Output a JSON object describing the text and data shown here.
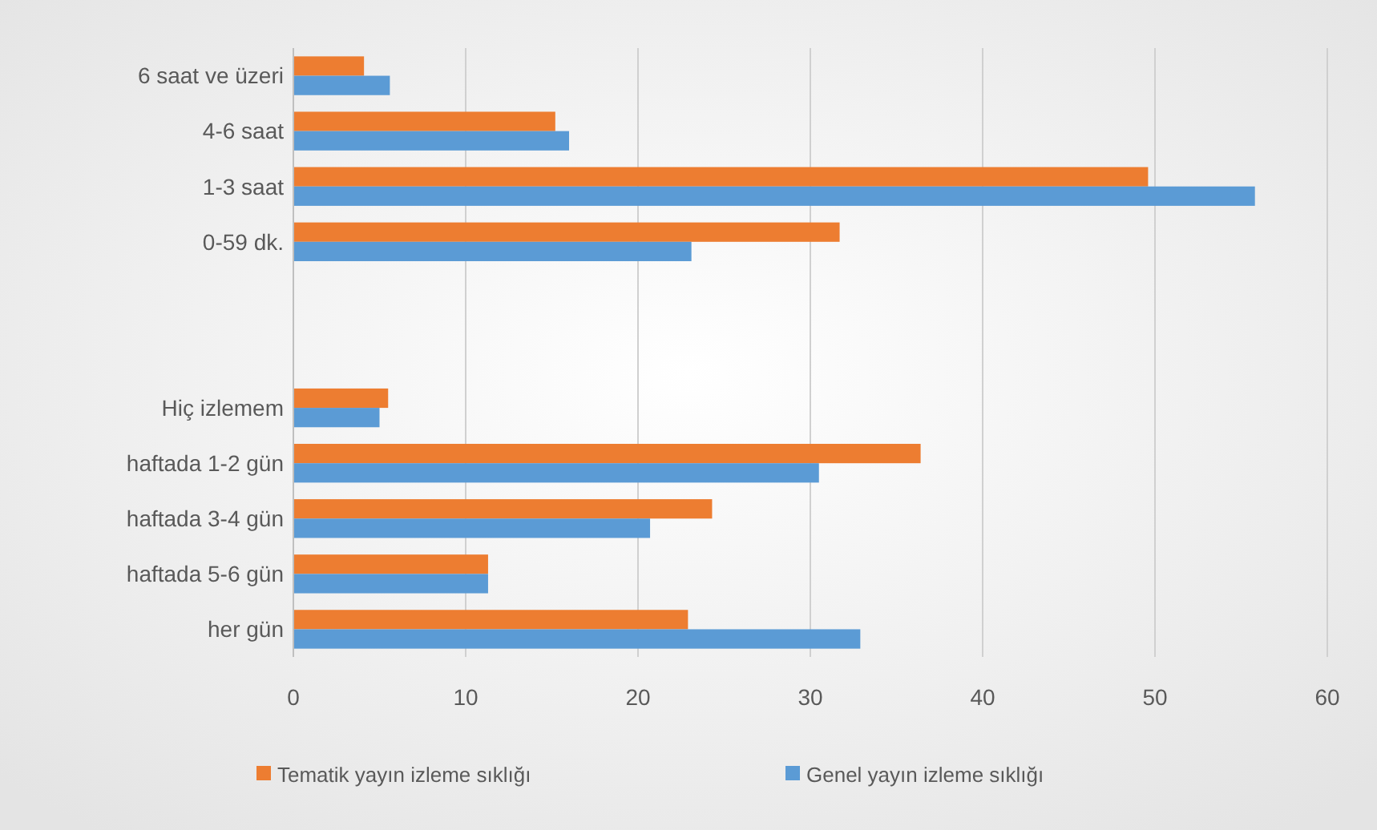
{
  "chart_data": {
    "type": "bar",
    "orientation": "horizontal",
    "categories": [
      "6 saat ve üzeri",
      "4-6 saat",
      "1-3 saat",
      "0-59 dk.",
      null,
      null,
      "Hiç izlemem",
      "haftada 1-2 gün",
      "haftada 3-4 gün",
      "haftada 5-6 gün",
      "her gün"
    ],
    "series": [
      {
        "name": "Tematik yayın izleme sıklığı",
        "color": "#ed7d31",
        "values": [
          4.1,
          15.2,
          49.6,
          31.7,
          null,
          null,
          5.5,
          36.4,
          24.3,
          11.3,
          22.9
        ]
      },
      {
        "name": "Genel yayın izleme sıklığı",
        "color": "#5b9bd5",
        "values": [
          5.6,
          16.0,
          55.8,
          23.1,
          null,
          null,
          5.0,
          30.5,
          20.7,
          11.3,
          32.9
        ]
      }
    ],
    "xlim": [
      0,
      60
    ],
    "xticks": [
      0,
      10,
      20,
      30,
      40,
      50,
      60
    ],
    "grid": "x",
    "legend": "bottom"
  }
}
